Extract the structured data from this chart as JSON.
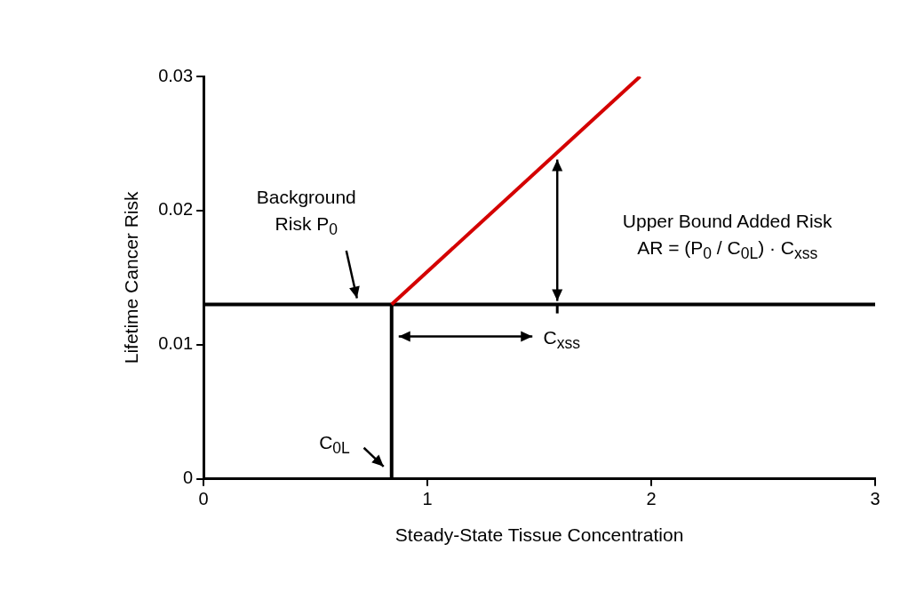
{
  "chart_data": {
    "type": "line",
    "xlabel": "Steady-State Tissue Concentration",
    "ylabel": "Lifetime Cancer Risk",
    "xlim": [
      0,
      3
    ],
    "xticks": [
      0,
      1,
      2,
      3
    ],
    "ylim": [
      0,
      0.03
    ],
    "yticks": [
      0,
      0.01,
      0.02,
      0.03
    ],
    "grid": false,
    "legend": false,
    "marker": "none",
    "line_style": "solid",
    "series": [
      {
        "color": "#d40000",
        "x": [
          0.84,
          1.95
        ],
        "values": [
          0.013,
          0.03
        ]
      },
      {
        "color": "#000000",
        "x": [
          0,
          3
        ],
        "values": [
          0.013,
          0.013
        ]
      },
      {
        "color": "#000000",
        "x": [
          0.84,
          0.84
        ],
        "values": [
          0,
          0.013
        ]
      }
    ],
    "annotations": [
      "Background\nRisk P$_{0}$",
      "Upper Bound Added Risk\nAR = (P$_{0}$ / C$_{0L}$) · C$_{xss}$",
      {
        "text": "C$_{xss}$",
        "x": 1.58,
        "y": 0.013
      },
      "C$_{0L}$"
    ]
  }
}
